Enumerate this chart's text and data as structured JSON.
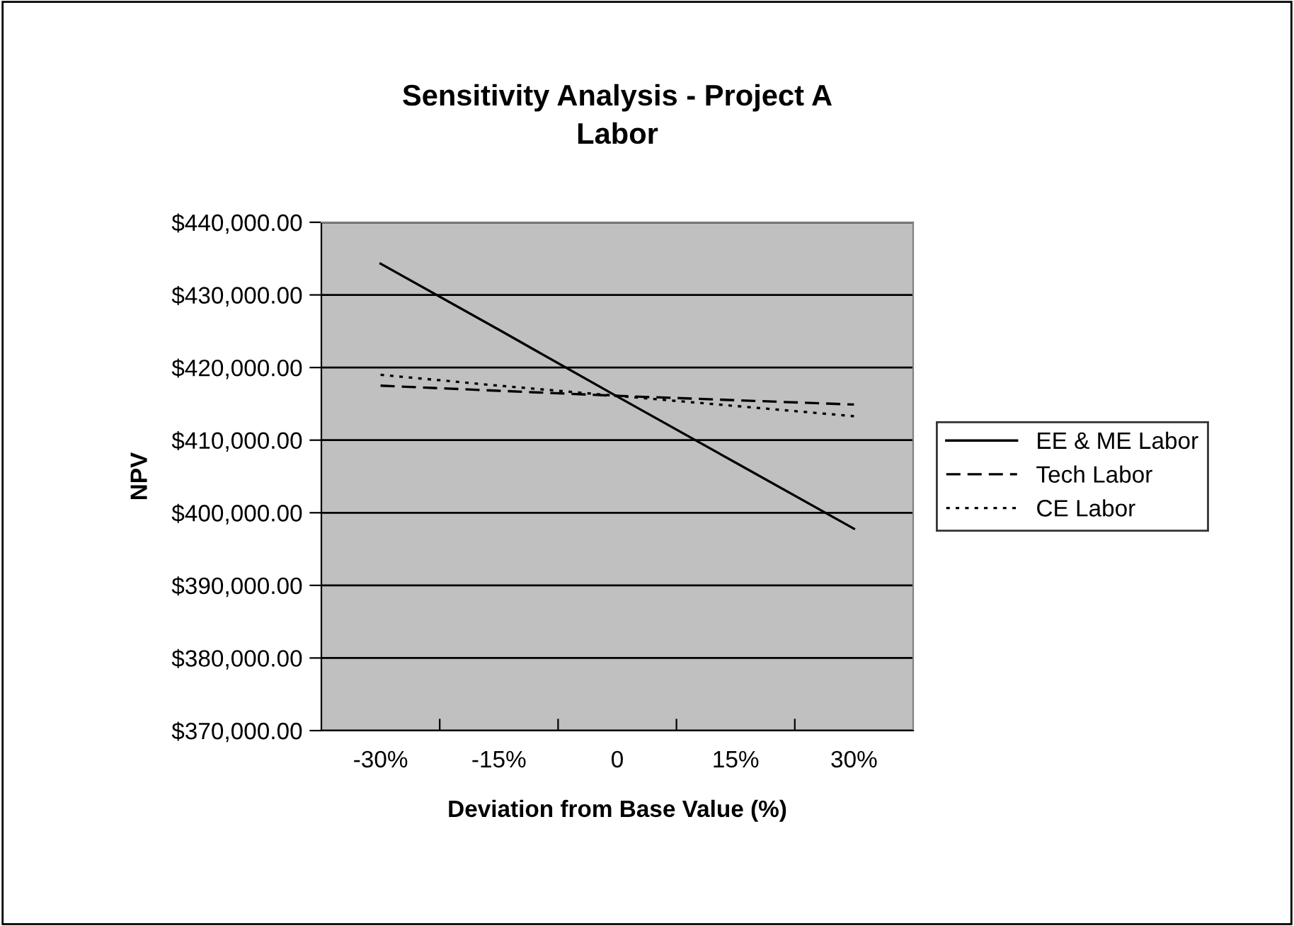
{
  "chart_data": {
    "type": "line",
    "title": "Sensitivity Analysis - Project A\nLabor",
    "xlabel": "Deviation from Base Value (%)",
    "ylabel": "NPV",
    "categories": [
      "-30%",
      "-15%",
      "0",
      "15%",
      "30%"
    ],
    "series": [
      {
        "name": "EE & ME Labor",
        "color": "#000000",
        "line_style": "solid",
        "values": [
          434300,
          425200,
          416000,
          406900,
          397800
        ]
      },
      {
        "name": "Tech Labor",
        "color": "#000000",
        "line_style": "dashed",
        "values": [
          417500,
          416800,
          416100,
          415500,
          414900
        ]
      },
      {
        "name": "CE Labor",
        "color": "#000000",
        "line_style": "dotted",
        "values": [
          419000,
          417500,
          416100,
          414700,
          413300
        ]
      }
    ],
    "ylim": [
      370000,
      440000
    ],
    "yticks": [
      {
        "value": 370000,
        "label": "$370,000.00"
      },
      {
        "value": 380000,
        "label": "$380,000.00"
      },
      {
        "value": 390000,
        "label": "$390,000.00"
      },
      {
        "value": 400000,
        "label": "$400,000.00"
      },
      {
        "value": 410000,
        "label": "$410,000.00"
      },
      {
        "value": 420000,
        "label": "$420,000.00"
      },
      {
        "value": 430000,
        "label": "$430,000.00"
      },
      {
        "value": 440000,
        "label": "$440,000.00"
      }
    ],
    "grid": "y",
    "legend": "right",
    "marker": "none"
  }
}
